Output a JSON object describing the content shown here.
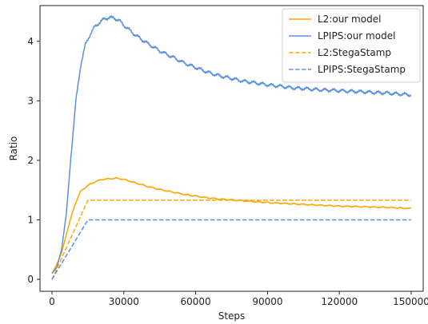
{
  "chart_data": {
    "type": "line",
    "xlabel": "Steps",
    "ylabel": "Ratio",
    "xlim": [
      -5000,
      155000
    ],
    "ylim": [
      -0.2,
      4.6
    ],
    "xticks": [
      0,
      30000,
      60000,
      90000,
      120000,
      150000
    ],
    "xtick_labels": [
      "0",
      "30000",
      "60000",
      "90000",
      "120000",
      "150000"
    ],
    "yticks": [
      0,
      1,
      2,
      3,
      4
    ],
    "ytick_labels": [
      "0",
      "1",
      "2",
      "3",
      "4"
    ],
    "grid": false,
    "legend_position": "top-right",
    "series": [
      {
        "name": "L2:our model",
        "color": "#FFA500",
        "style": "solid",
        "x": [
          0,
          2000,
          4000,
          6000,
          8000,
          10000,
          12000,
          15000,
          18000,
          21000,
          24000,
          27000,
          30000,
          35000,
          40000,
          45000,
          50000,
          55000,
          60000,
          65000,
          70000,
          80000,
          90000,
          100000,
          110000,
          120000,
          130000,
          140000,
          150000
        ],
        "y": [
          0.1,
          0.25,
          0.45,
          0.75,
          1.05,
          1.3,
          1.48,
          1.58,
          1.64,
          1.68,
          1.69,
          1.7,
          1.68,
          1.62,
          1.56,
          1.51,
          1.47,
          1.43,
          1.4,
          1.37,
          1.35,
          1.32,
          1.29,
          1.27,
          1.25,
          1.23,
          1.22,
          1.21,
          1.19
        ]
      },
      {
        "name": "LPIPS:our model",
        "color": "#5B8FE4",
        "style": "solid",
        "x": [
          0,
          2000,
          4000,
          6000,
          8000,
          10000,
          12000,
          14000,
          16000,
          18000,
          20000,
          22000,
          24000,
          26000,
          28000,
          30000,
          35000,
          40000,
          45000,
          50000,
          55000,
          60000,
          65000,
          70000,
          80000,
          90000,
          100000,
          110000,
          120000,
          130000,
          140000,
          150000
        ],
        "y": [
          0.1,
          0.2,
          0.5,
          1.1,
          2.1,
          3.0,
          3.6,
          3.95,
          4.12,
          4.25,
          4.32,
          4.38,
          4.4,
          4.39,
          4.35,
          4.27,
          4.1,
          3.96,
          3.84,
          3.74,
          3.64,
          3.56,
          3.48,
          3.42,
          3.33,
          3.27,
          3.22,
          3.19,
          3.17,
          3.15,
          3.13,
          3.1
        ]
      },
      {
        "name": "L2:StegaStamp",
        "color": "#FFA500",
        "style": "dashed",
        "x": [
          0,
          15000,
          150000
        ],
        "y": [
          0,
          1.33,
          1.33
        ]
      },
      {
        "name": "LPIPS:StegaStamp",
        "color": "#5B8FE4",
        "style": "dashed",
        "x": [
          0,
          15000,
          150000
        ],
        "y": [
          0,
          1.0,
          1.0
        ]
      }
    ]
  }
}
